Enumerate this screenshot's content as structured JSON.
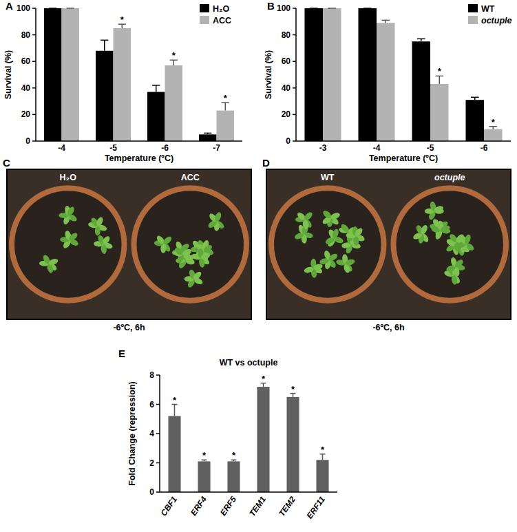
{
  "chart_data": [
    {
      "type": "bar",
      "panel_label": "A",
      "x_label": "Temperature (ºC)",
      "y_label": "Survival (%)",
      "categories": [
        "-4",
        "-5",
        "-6",
        "-7"
      ],
      "series": [
        {
          "name": "H₂O",
          "color": "#000000",
          "values": [
            100,
            68,
            37,
            5
          ],
          "errors": [
            0,
            8,
            5,
            1
          ],
          "significance": [
            null,
            null,
            null,
            null
          ]
        },
        {
          "name": "ACC",
          "color": "#b3b3b3",
          "values": [
            100,
            85,
            57,
            23
          ],
          "errors": [
            0,
            3,
            4,
            6
          ],
          "significance": [
            null,
            "*",
            "*",
            "*"
          ]
        }
      ],
      "ylim": [
        0,
        100
      ],
      "yticks": [
        0,
        20,
        40,
        60,
        80,
        100
      ],
      "legend": "top-right"
    },
    {
      "type": "bar",
      "panel_label": "B",
      "x_label": "Temperature (ºC)",
      "y_label": "Survival (%)",
      "categories": [
        "-3",
        "-4",
        "-5",
        "-6"
      ],
      "series": [
        {
          "name": "WT",
          "color": "#000000",
          "values": [
            100,
            100,
            75,
            31
          ],
          "errors": [
            0,
            0,
            2,
            2
          ],
          "significance": [
            null,
            null,
            null,
            null
          ]
        },
        {
          "name": "octuple",
          "color": "#b3b3b3",
          "values": [
            100,
            89,
            43,
            9
          ],
          "errors": [
            0,
            2,
            6,
            2
          ],
          "significance": [
            null,
            null,
            "*",
            "*"
          ]
        }
      ],
      "ylim": [
        0,
        100
      ],
      "yticks": [
        0,
        20,
        40,
        60,
        80,
        100
      ],
      "legend": "top-right"
    },
    {
      "type": "bar",
      "panel_label": "E",
      "title": "WT vs octuple",
      "y_label": "Fold Change (repression)",
      "categories": [
        "CBF1",
        "ERF4",
        "ERF5",
        "TEM1",
        "TEM2",
        "ERF11"
      ],
      "values": [
        5.2,
        2.1,
        2.1,
        7.2,
        6.5,
        2.2
      ],
      "errors": [
        0.8,
        0.1,
        0.1,
        0.25,
        0.25,
        0.4
      ],
      "significance": [
        "*",
        "*",
        "*",
        "*",
        "*",
        "*"
      ],
      "color": "#606060",
      "ylim": [
        0,
        8
      ],
      "yticks": [
        0,
        2,
        4,
        6,
        8
      ]
    }
  ],
  "photos": [
    {
      "panel_label": "C",
      "left_label": "H₂O",
      "right_label": "ACC",
      "caption": "-6ºC, 6h"
    },
    {
      "panel_label": "D",
      "left_label": "WT",
      "right_label": "octuple",
      "caption": "-6ºC, 6h"
    }
  ]
}
